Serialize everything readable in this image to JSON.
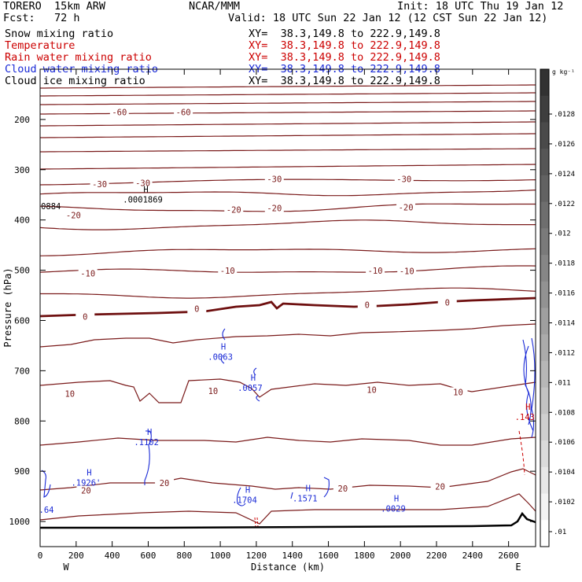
{
  "header": {
    "model": "TORERO  15km ARW",
    "center": "NCAR/MMM",
    "init": "Init: 18 UTC Thu 19 Jan 12",
    "fcst": "Fcst:   72 h",
    "valid": "Valid: 18 UTC Sun 22 Jan 12 (12 CST Sun 22 Jan 12)"
  },
  "colors": {
    "temperature": "#7a1a1a",
    "freezing": "#6e0f0f",
    "cloud_water": "#1a2ad6",
    "rain": "#cc0000",
    "ground": "#000000"
  },
  "legend": [
    {
      "label": "Snow mixing ratio",
      "color": "#000000",
      "xy": "XY=  38.3,149.8 to 222.9,149.8",
      "xy_color": "#000000"
    },
    {
      "label": "Temperature",
      "color": "#cc0000",
      "xy": "XY=  38.3,149.8 to 222.9,149.8",
      "xy_color": "#cc0000"
    },
    {
      "label": "Rain water mixing ratio",
      "color": "#cc0000",
      "xy": "XY=  38.3,149.8 to 222.9,149.8",
      "xy_color": "#cc0000"
    },
    {
      "label": "Cloud water mixing ratio",
      "color": "#1a2ad6",
      "xy": "XY=  38.3,149.8 to 222.9,149.8",
      "xy_color": "#1a2ad6"
    },
    {
      "label": "Cloud ice mixing ratio",
      "color": "#000000",
      "xy": "XY=  38.3,149.8 to 222.9,149.8",
      "xy_color": "#000000"
    }
  ],
  "chart_data": {
    "type": "contour_cross_section",
    "xlabel": "Distance (km)",
    "ylabel": "Pressure (hPa)",
    "x_range": [
      0,
      2750
    ],
    "y_range": [
      1050,
      100
    ],
    "x_ticks": [
      0,
      200,
      400,
      600,
      800,
      1000,
      1200,
      1400,
      1600,
      1800,
      2000,
      2200,
      2400,
      2600
    ],
    "y_ticks": [
      200,
      300,
      400,
      500,
      600,
      700,
      800,
      900,
      1000
    ],
    "x_end_labels": {
      "left": "W",
      "right": "E"
    },
    "colorbar": {
      "unit": "g kg⁻¹",
      "labels": [
        ".0128",
        ".0126",
        ".0124",
        ".0122",
        ".012",
        ".0118",
        ".0116",
        ".0114",
        ".0112",
        ".011",
        ".0108",
        ".0106",
        ".0104",
        ".0102",
        ".01"
      ]
    },
    "temperature_contour_labels": [
      {
        "text": "-60",
        "x": 440,
        "p": 187
      },
      {
        "text": "-60",
        "x": 795,
        "p": 187
      },
      {
        "text": "-30",
        "x": 330,
        "p": 330
      },
      {
        "text": "-30",
        "x": 570,
        "p": 328
      },
      {
        "text": "-30",
        "x": 1300,
        "p": 320
      },
      {
        "text": "-30",
        "x": 2020,
        "p": 320
      },
      {
        "text": "-20",
        "x": 185,
        "p": 392
      },
      {
        "text": "-20",
        "x": 1075,
        "p": 381
      },
      {
        "text": "-20",
        "x": 1300,
        "p": 378
      },
      {
        "text": "-20",
        "x": 2030,
        "p": 376
      },
      {
        "text": "-10",
        "x": 265,
        "p": 508
      },
      {
        "text": "-10",
        "x": 1040,
        "p": 502
      },
      {
        "text": "-10",
        "x": 1860,
        "p": 502
      },
      {
        "text": "-10",
        "x": 2035,
        "p": 503
      },
      {
        "text": "0",
        "x": 250,
        "p": 594
      },
      {
        "text": "0",
        "x": 870,
        "p": 578
      },
      {
        "text": "0",
        "x": 1815,
        "p": 570
      },
      {
        "text": "0",
        "x": 2260,
        "p": 566
      },
      {
        "text": "10",
        "x": 165,
        "p": 747
      },
      {
        "text": "10",
        "x": 960,
        "p": 742
      },
      {
        "text": "10",
        "x": 1840,
        "p": 739
      },
      {
        "text": "10",
        "x": 2320,
        "p": 744
      },
      {
        "text": "20",
        "x": 255,
        "p": 940
      },
      {
        "text": "20",
        "x": 690,
        "p": 925
      },
      {
        "text": "20",
        "x": 1680,
        "p": 936
      },
      {
        "text": "20",
        "x": 2220,
        "p": 932
      }
    ],
    "extrema_labels": [
      {
        "mark": "H",
        "value": ".0001869",
        "x": 570,
        "p": 345,
        "color": "#000000"
      },
      {
        "mark": "",
        "value": "0884",
        "x": 60,
        "p": 358,
        "color": "#000000"
      },
      {
        "mark": "H",
        "value": ".0063",
        "x": 1000,
        "p": 658,
        "color": "#1a2ad6"
      },
      {
        "mark": "H",
        "value": ".0057",
        "x": 1165,
        "p": 720,
        "color": "#1a2ad6"
      },
      {
        "mark": "H",
        "value": ".1102",
        "x": 590,
        "p": 828,
        "color": "#1a2ad6"
      },
      {
        "mark": "H",
        "value": ".1926'",
        "x": 255,
        "p": 908,
        "color": "#1a2ad6"
      },
      {
        "mark": "",
        "value": ".64",
        "x": 35,
        "p": 962,
        "color": "#1a2ad6"
      },
      {
        "mark": "H",
        "value": ".1704",
        "x": 1135,
        "p": 943,
        "color": "#1a2ad6"
      },
      {
        "mark": "H",
        "value": ".1571",
        "x": 1470,
        "p": 940,
        "color": "#1a2ad6"
      },
      {
        "mark": "H",
        "value": ".0029",
        "x": 1960,
        "p": 960,
        "color": "#1a2ad6"
      },
      {
        "mark": "H",
        "value": ".143",
        "x": 2690,
        "p": 778,
        "color": "#cc0000"
      }
    ]
  }
}
